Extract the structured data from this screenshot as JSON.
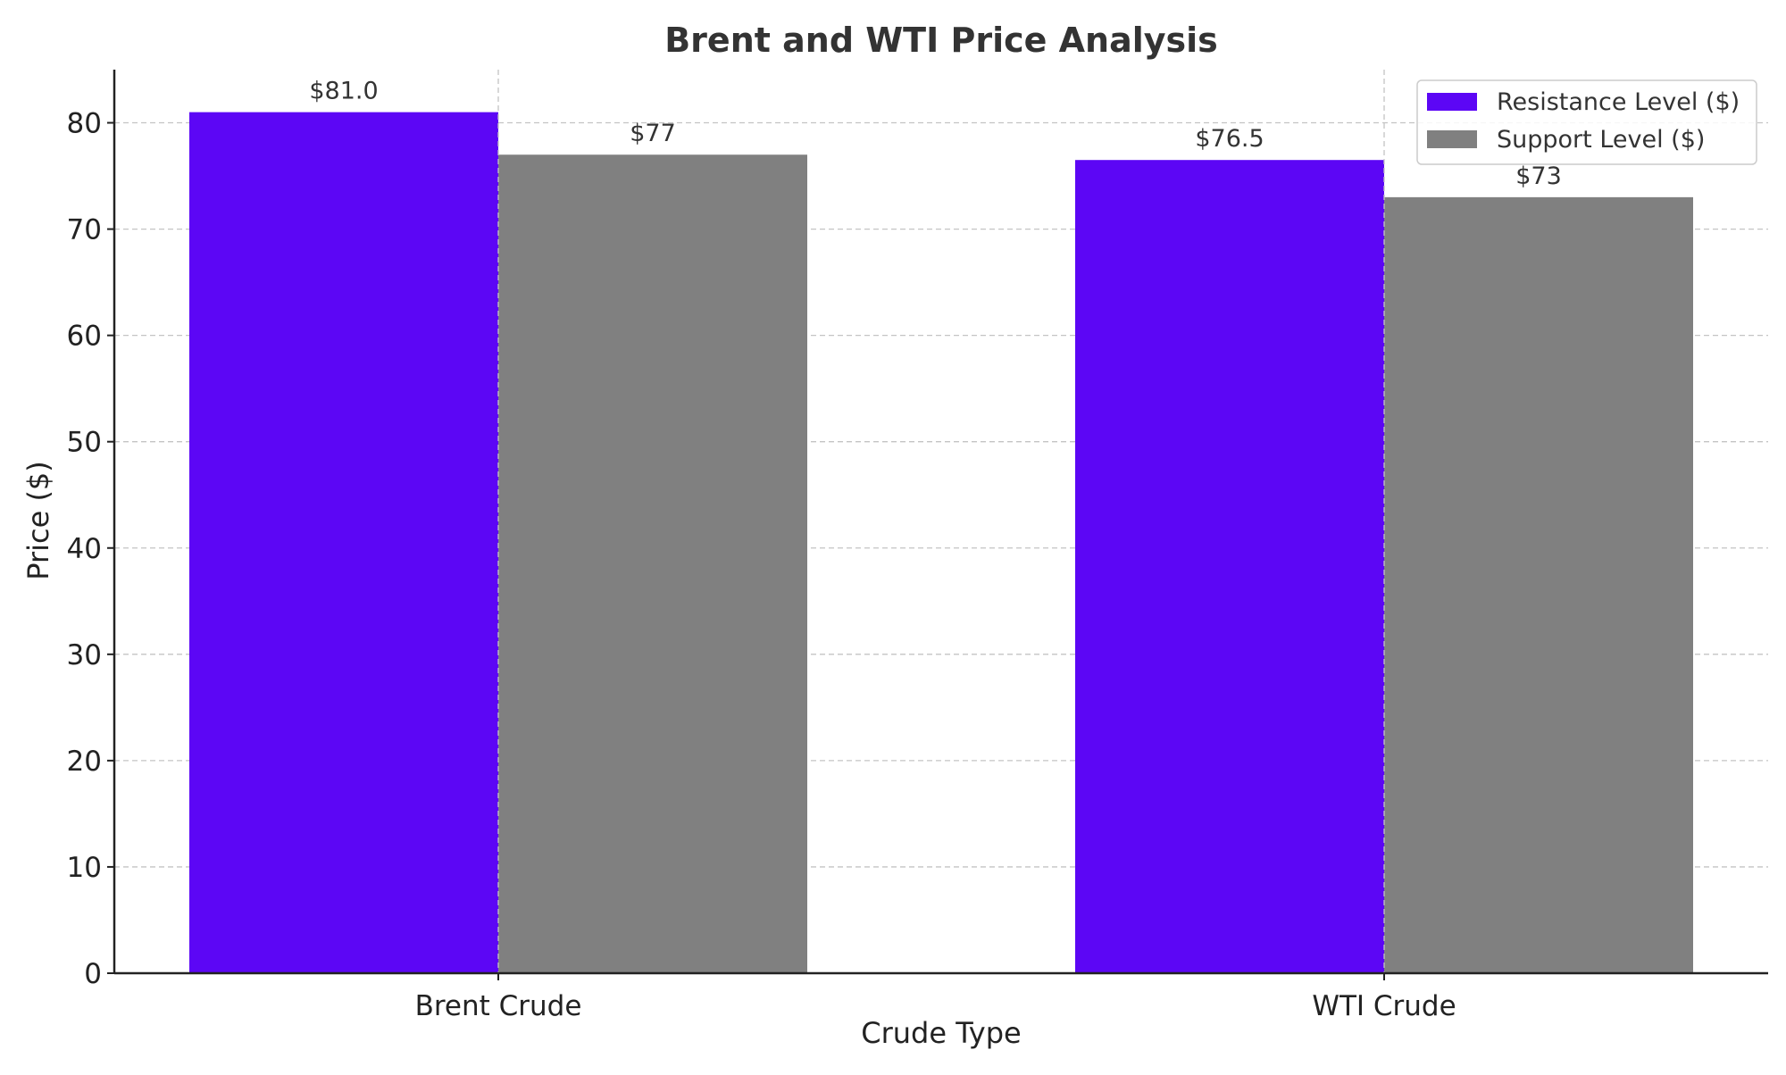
{
  "chart_data": {
    "type": "bar",
    "title": "Brent and WTI Price Analysis",
    "xlabel": "Crude Type",
    "ylabel": "Price ($)",
    "categories": [
      "Brent Crude",
      "WTI Crude"
    ],
    "series": [
      {
        "name": "Resistance Level ($)",
        "values": [
          81.0,
          76.5
        ],
        "labels": [
          "$81.0",
          "$76.5"
        ],
        "color": "#5c06f5"
      },
      {
        "name": "Support Level ($)",
        "values": [
          77,
          73
        ],
        "labels": [
          "$77",
          "$73"
        ],
        "color": "#808080"
      }
    ],
    "ylim": [
      0,
      85
    ],
    "yticks": [
      0,
      10,
      20,
      30,
      40,
      50,
      60,
      70,
      80
    ],
    "grid": true,
    "legend_position": "top-right"
  }
}
